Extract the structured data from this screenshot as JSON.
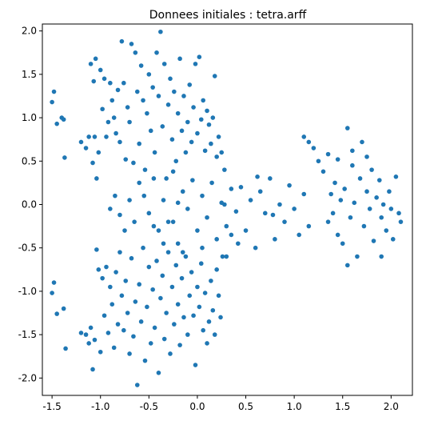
{
  "chart_data": {
    "type": "scatter",
    "title": "Donnees initiales : tetra.arff",
    "xlabel": "",
    "ylabel": "",
    "xlim": [
      -1.6,
      2.22
    ],
    "ylim": [
      -2.2,
      2.08
    ],
    "x_ticks": [
      "-1.5",
      "-1.0",
      "-0.5",
      "0.0",
      "0.5",
      "1.0",
      "1.5",
      "2.0"
    ],
    "y_ticks": [
      "2.0",
      "1.5",
      "1.0",
      "0.5",
      "0.0",
      "-0.5",
      "-1.0",
      "-1.5",
      "-2.0"
    ],
    "grid": false,
    "color": "#1f77b4",
    "points": [
      [
        -1.5,
        1.18
      ],
      [
        -1.48,
        1.3
      ],
      [
        -1.45,
        0.93
      ],
      [
        -1.4,
        1.0
      ],
      [
        -1.38,
        0.98
      ],
      [
        -1.37,
        0.54
      ],
      [
        -1.2,
        0.72
      ],
      [
        -1.15,
        0.65
      ],
      [
        -1.12,
        0.78
      ],
      [
        -1.1,
        1.62
      ],
      [
        -1.08,
        0.48
      ],
      [
        -1.07,
        1.42
      ],
      [
        -1.06,
        0.78
      ],
      [
        -1.05,
        1.68
      ],
      [
        -1.04,
        0.3
      ],
      [
        -1.02,
        0.6
      ],
      [
        -1.0,
        1.55
      ],
      [
        -0.98,
        1.1
      ],
      [
        -0.96,
        1.45
      ],
      [
        -0.94,
        0.78
      ],
      [
        -0.92,
        0.95
      ],
      [
        -0.9,
        1.4
      ],
      [
        -0.88,
        1.2
      ],
      [
        -0.86,
        1.0
      ],
      [
        -0.84,
        0.82
      ],
      [
        -0.82,
        1.32
      ],
      [
        -0.8,
        0.72
      ],
      [
        -0.78,
        1.88
      ],
      [
        -0.76,
        1.4
      ],
      [
        -0.74,
        0.52
      ],
      [
        -0.72,
        1.12
      ],
      [
        -0.7,
        0.95
      ],
      [
        -0.68,
        1.85
      ],
      [
        -0.66,
        0.48
      ],
      [
        -0.64,
        1.75
      ],
      [
        -0.62,
        1.3
      ],
      [
        -0.6,
        0.7
      ],
      [
        -0.58,
        1.6
      ],
      [
        -0.56,
        1.2
      ],
      [
        -0.54,
        0.4
      ],
      [
        -0.52,
        1.05
      ],
      [
        -0.5,
        1.5
      ],
      [
        -0.48,
        0.85
      ],
      [
        -0.46,
        1.35
      ],
      [
        -0.44,
        0.6
      ],
      [
        -0.42,
        1.75
      ],
      [
        -0.4,
        1.25
      ],
      [
        -0.38,
        1.99
      ],
      [
        -0.36,
        0.9
      ],
      [
        -0.34,
        1.62
      ],
      [
        -0.32,
        0.3
      ],
      [
        -0.3,
        1.15
      ],
      [
        -0.28,
        1.45
      ],
      [
        -0.26,
        0.75
      ],
      [
        -0.24,
        1.3
      ],
      [
        -0.22,
        0.5
      ],
      [
        -0.2,
        1.05
      ],
      [
        -0.18,
        1.68
      ],
      [
        -0.16,
        0.85
      ],
      [
        -0.14,
        1.25
      ],
      [
        -0.12,
        0.6
      ],
      [
        -0.1,
        0.95
      ],
      [
        -0.08,
        1.38
      ],
      [
        -0.06,
        0.72
      ],
      [
        -0.04,
        1.12
      ],
      [
        -0.02,
        1.62
      ],
      [
        0.0,
        0.82
      ],
      [
        0.02,
        1.7
      ],
      [
        0.04,
        0.98
      ],
      [
        0.06,
        1.2
      ],
      [
        0.08,
        0.62
      ],
      [
        0.1,
        1.08
      ],
      [
        0.12,
        0.92
      ],
      [
        0.14,
        0.7
      ],
      [
        0.16,
        1.0
      ],
      [
        0.18,
        1.48
      ],
      [
        0.2,
        0.55
      ],
      [
        0.22,
        0.78
      ],
      [
        0.25,
        0.6
      ],
      [
        0.28,
        0.4
      ],
      [
        -0.6,
        0.25
      ],
      [
        -0.55,
        0.1
      ],
      [
        -0.5,
        -0.1
      ],
      [
        -0.45,
        0.3
      ],
      [
        -0.4,
        -0.3
      ],
      [
        -0.35,
        0.05
      ],
      [
        -0.3,
        -0.2
      ],
      [
        -0.25,
        0.38
      ],
      [
        -0.2,
        -0.45
      ],
      [
        -0.15,
        0.15
      ],
      [
        -0.1,
        -0.05
      ],
      [
        -0.05,
        0.28
      ],
      [
        0.0,
        -0.3
      ],
      [
        0.05,
        0.1
      ],
      [
        0.1,
        -0.15
      ],
      [
        0.15,
        0.25
      ],
      [
        0.2,
        -0.4
      ],
      [
        0.25,
        0.02
      ],
      [
        0.3,
        -0.25
      ],
      [
        0.35,
        0.18
      ],
      [
        0.4,
        -0.08
      ],
      [
        0.45,
        0.2
      ],
      [
        0.5,
        -0.3
      ],
      [
        0.55,
        0.05
      ],
      [
        0.6,
        -0.5
      ],
      [
        0.65,
        0.15
      ],
      [
        0.7,
        -0.1
      ],
      [
        0.75,
        0.3
      ],
      [
        0.8,
        -0.4
      ],
      [
        0.85,
        0.0
      ],
      [
        0.9,
        -0.2
      ],
      [
        0.95,
        0.22
      ],
      [
        1.0,
        -0.05
      ],
      [
        1.05,
        -0.35
      ],
      [
        1.1,
        0.12
      ],
      [
        1.15,
        -0.25
      ],
      [
        -0.8,
        -0.12
      ],
      [
        -0.75,
        -0.3
      ],
      [
        -0.7,
        0.05
      ],
      [
        -0.65,
        -0.2
      ],
      [
        -0.85,
        0.1
      ],
      [
        -0.9,
        -0.05
      ],
      [
        -0.2,
        0.02
      ],
      [
        0.28,
        0.0
      ],
      [
        0.62,
        0.32
      ],
      [
        0.78,
        -0.12
      ],
      [
        0.42,
        -0.45
      ],
      [
        0.05,
        -0.5
      ],
      [
        1.1,
        0.78
      ],
      [
        1.15,
        0.72
      ],
      [
        1.2,
        0.65
      ],
      [
        1.25,
        0.5
      ],
      [
        1.3,
        0.38
      ],
      [
        1.35,
        0.58
      ],
      [
        1.38,
        0.12
      ],
      [
        1.4,
        -0.1
      ],
      [
        1.42,
        0.25
      ],
      [
        1.45,
        -0.35
      ],
      [
        1.48,
        0.05
      ],
      [
        1.5,
        -0.45
      ],
      [
        1.52,
        0.18
      ],
      [
        1.55,
        0.88
      ],
      [
        1.58,
        -0.15
      ],
      [
        1.6,
        0.45
      ],
      [
        1.62,
        0.02
      ],
      [
        1.65,
        -0.6
      ],
      [
        1.68,
        0.3
      ],
      [
        1.7,
        0.72
      ],
      [
        1.72,
        -0.25
      ],
      [
        1.75,
        0.15
      ],
      [
        1.78,
        -0.05
      ],
      [
        1.8,
        0.4
      ],
      [
        1.82,
        -0.42
      ],
      [
        1.85,
        0.08
      ],
      [
        1.88,
        0.28
      ],
      [
        1.9,
        -0.15
      ],
      [
        1.92,
        0.0
      ],
      [
        1.95,
        -0.3
      ],
      [
        1.98,
        0.15
      ],
      [
        2.0,
        -0.05
      ],
      [
        2.02,
        -0.4
      ],
      [
        2.05,
        0.32
      ],
      [
        2.08,
        -0.1
      ],
      [
        2.1,
        -0.2
      ],
      [
        1.45,
        0.52
      ],
      [
        1.6,
        0.62
      ],
      [
        1.75,
        0.55
      ],
      [
        1.35,
        -0.2
      ],
      [
        1.55,
        -0.7
      ],
      [
        1.9,
        -0.6
      ],
      [
        -1.5,
        -1.02
      ],
      [
        -1.48,
        -0.9
      ],
      [
        -1.45,
        -1.26
      ],
      [
        -1.38,
        -1.2
      ],
      [
        -1.36,
        -1.66
      ],
      [
        -1.2,
        -1.48
      ],
      [
        -1.15,
        -1.5
      ],
      [
        -1.12,
        -1.6
      ],
      [
        -1.1,
        -1.42
      ],
      [
        -1.08,
        -1.9
      ],
      [
        -1.06,
        -1.56
      ],
      [
        -1.04,
        -0.52
      ],
      [
        -1.02,
        -0.75
      ],
      [
        -1.0,
        -1.7
      ],
      [
        -0.98,
        -0.85
      ],
      [
        -0.96,
        -1.28
      ],
      [
        -0.94,
        -0.72
      ],
      [
        -0.92,
        -1.48
      ],
      [
        -0.9,
        -0.95
      ],
      [
        -0.88,
        -1.15
      ],
      [
        -0.86,
        -1.65
      ],
      [
        -0.84,
        -0.78
      ],
      [
        -0.82,
        -1.38
      ],
      [
        -0.8,
        -0.55
      ],
      [
        -0.78,
        -1.05
      ],
      [
        -0.76,
        -1.45
      ],
      [
        -0.74,
        -0.88
      ],
      [
        -0.72,
        -1.25
      ],
      [
        -0.7,
        -1.72
      ],
      [
        -0.68,
        -0.62
      ],
      [
        -0.66,
        -1.52
      ],
      [
        -0.64,
        -1.12
      ],
      [
        -0.62,
        -2.08
      ],
      [
        -0.6,
        -0.92
      ],
      [
        -0.58,
        -1.35
      ],
      [
        -0.56,
        -0.5
      ],
      [
        -0.54,
        -1.8
      ],
      [
        -0.52,
        -1.18
      ],
      [
        -0.5,
        -0.72
      ],
      [
        -0.48,
        -1.6
      ],
      [
        -0.46,
        -0.98
      ],
      [
        -0.44,
        -1.42
      ],
      [
        -0.42,
        -0.65
      ],
      [
        -0.4,
        -1.94
      ],
      [
        -0.38,
        -1.08
      ],
      [
        -0.36,
        -0.82
      ],
      [
        -0.34,
        -1.55
      ],
      [
        -0.32,
        -1.25
      ],
      [
        -0.3,
        -0.55
      ],
      [
        -0.28,
        -1.72
      ],
      [
        -0.26,
        -0.95
      ],
      [
        -0.24,
        -1.38
      ],
      [
        -0.22,
        -0.7
      ],
      [
        -0.2,
        -1.15
      ],
      [
        -0.18,
        -1.62
      ],
      [
        -0.16,
        -0.85
      ],
      [
        -0.14,
        -1.3
      ],
      [
        -0.12,
        -0.6
      ],
      [
        -0.1,
        -1.5
      ],
      [
        -0.08,
        -1.05
      ],
      [
        -0.06,
        -0.78
      ],
      [
        -0.04,
        -1.28
      ],
      [
        -0.02,
        -1.85
      ],
      [
        0.0,
        -0.95
      ],
      [
        0.02,
        -1.18
      ],
      [
        0.04,
        -0.68
      ],
      [
        0.06,
        -1.45
      ],
      [
        0.08,
        -1.02
      ],
      [
        0.1,
        -1.6
      ],
      [
        0.12,
        -1.35
      ],
      [
        0.14,
        -0.88
      ],
      [
        0.16,
        -1.22
      ],
      [
        0.18,
        -1.5
      ],
      [
        0.2,
        -0.75
      ],
      [
        0.22,
        -1.05
      ],
      [
        0.24,
        -1.3
      ],
      [
        0.26,
        -0.6
      ],
      [
        -0.45,
        -0.25
      ],
      [
        -0.35,
        -0.45
      ],
      [
        -0.25,
        -0.2
      ],
      [
        -0.15,
        -0.55
      ],
      [
        0.3,
        -0.6
      ],
      [
        0.35,
        -0.35
      ]
    ]
  }
}
